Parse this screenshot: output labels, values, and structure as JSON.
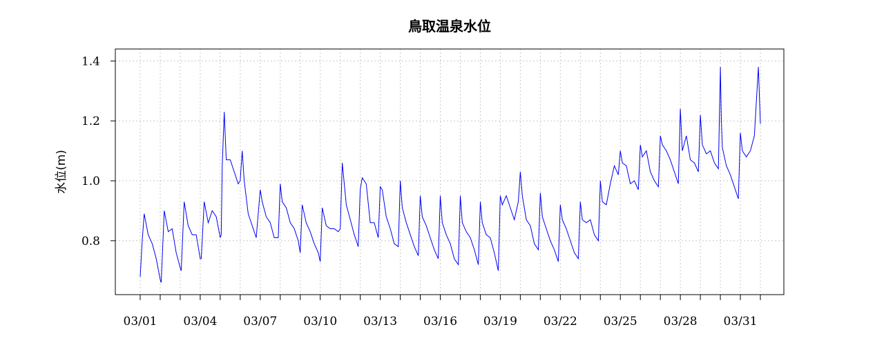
{
  "chart_data": {
    "type": "line",
    "title": "鳥取温泉水位",
    "ylabel": "水位(m)",
    "xlabel": "",
    "x_tick_labels": [
      "03/01",
      "03/04",
      "03/07",
      "03/10",
      "03/13",
      "03/16",
      "03/19",
      "03/22",
      "03/25",
      "03/28",
      "03/31"
    ],
    "x_tick_days": [
      1,
      4,
      7,
      10,
      13,
      16,
      19,
      22,
      25,
      28,
      31
    ],
    "xlim": [
      1,
      32
    ],
    "y_ticks": [
      0.8,
      1.0,
      1.2,
      1.4
    ],
    "y_tick_labels": [
      "0.8",
      "1.0",
      "1.2",
      "1.4"
    ],
    "ylim": [
      0.62,
      1.44
    ],
    "grid": true,
    "line_color": "#0000ee",
    "series": [
      {
        "x": [
          1.0,
          1.1,
          1.2,
          1.4,
          1.6,
          1.8,
          2.0,
          2.05,
          2.2,
          2.4,
          2.6,
          2.8,
          3.0,
          3.05,
          3.2,
          3.4,
          3.6,
          3.8,
          4.0,
          4.05,
          4.2,
          4.4,
          4.6,
          4.8,
          5.0,
          5.05,
          5.1,
          5.2,
          5.3,
          5.5,
          5.7,
          5.9,
          6.0,
          6.1,
          6.2,
          6.4,
          6.6,
          6.8,
          7.0,
          7.1,
          7.3,
          7.5,
          7.7,
          7.9,
          8.0,
          8.1,
          8.3,
          8.5,
          8.7,
          8.9,
          9.0,
          9.1,
          9.3,
          9.5,
          9.7,
          9.9,
          10.0,
          10.1,
          10.3,
          10.5,
          10.7,
          10.9,
          11.0,
          11.1,
          11.3,
          11.5,
          11.7,
          11.9,
          12.0,
          12.1,
          12.3,
          12.5,
          12.7,
          12.9,
          13.0,
          13.1,
          13.3,
          13.5,
          13.7,
          13.9,
          14.0,
          14.1,
          14.3,
          14.5,
          14.7,
          14.9,
          15.0,
          15.1,
          15.3,
          15.5,
          15.7,
          15.9,
          16.0,
          16.1,
          16.3,
          16.5,
          16.7,
          16.9,
          17.0,
          17.1,
          17.3,
          17.5,
          17.7,
          17.9,
          18.0,
          18.1,
          18.3,
          18.5,
          18.7,
          18.9,
          19.0,
          19.1,
          19.3,
          19.5,
          19.7,
          19.9,
          20.0,
          20.1,
          20.3,
          20.5,
          20.7,
          20.9,
          21.0,
          21.1,
          21.3,
          21.5,
          21.7,
          21.9,
          22.0,
          22.1,
          22.3,
          22.5,
          22.7,
          22.9,
          23.0,
          23.1,
          23.3,
          23.5,
          23.7,
          23.9,
          24.0,
          24.1,
          24.3,
          24.5,
          24.7,
          24.9,
          25.0,
          25.1,
          25.3,
          25.5,
          25.7,
          25.9,
          26.0,
          26.1,
          26.3,
          26.5,
          26.7,
          26.9,
          27.0,
          27.1,
          27.3,
          27.5,
          27.7,
          27.9,
          28.0,
          28.1,
          28.3,
          28.5,
          28.7,
          28.9,
          29.0,
          29.1,
          29.3,
          29.5,
          29.7,
          29.9,
          30.0,
          30.05,
          30.1,
          30.3,
          30.5,
          30.7,
          30.9,
          31.0,
          31.1,
          31.3,
          31.5,
          31.7,
          31.9,
          32.0
        ],
        "y": [
          0.68,
          0.8,
          0.89,
          0.82,
          0.79,
          0.74,
          0.67,
          0.66,
          0.9,
          0.83,
          0.84,
          0.76,
          0.71,
          0.7,
          0.93,
          0.85,
          0.82,
          0.82,
          0.74,
          0.74,
          0.93,
          0.86,
          0.9,
          0.88,
          0.81,
          0.82,
          1.05,
          1.23,
          1.07,
          1.07,
          1.03,
          0.99,
          1.0,
          1.1,
          1.0,
          0.89,
          0.85,
          0.81,
          0.97,
          0.93,
          0.88,
          0.86,
          0.81,
          0.81,
          0.99,
          0.93,
          0.91,
          0.86,
          0.84,
          0.8,
          0.76,
          0.92,
          0.86,
          0.83,
          0.79,
          0.76,
          0.73,
          0.91,
          0.85,
          0.84,
          0.84,
          0.83,
          0.84,
          1.06,
          0.92,
          0.87,
          0.82,
          0.78,
          0.97,
          1.01,
          0.99,
          0.86,
          0.86,
          0.81,
          0.98,
          0.97,
          0.88,
          0.84,
          0.79,
          0.78,
          1.0,
          0.91,
          0.86,
          0.82,
          0.78,
          0.75,
          0.95,
          0.88,
          0.85,
          0.81,
          0.77,
          0.74,
          0.95,
          0.86,
          0.82,
          0.79,
          0.74,
          0.72,
          0.95,
          0.86,
          0.83,
          0.81,
          0.77,
          0.72,
          0.93,
          0.86,
          0.82,
          0.81,
          0.76,
          0.7,
          0.95,
          0.92,
          0.95,
          0.91,
          0.87,
          0.93,
          1.03,
          0.95,
          0.87,
          0.85,
          0.79,
          0.77,
          0.96,
          0.88,
          0.84,
          0.8,
          0.77,
          0.73,
          0.92,
          0.87,
          0.84,
          0.8,
          0.76,
          0.74,
          0.93,
          0.87,
          0.86,
          0.87,
          0.82,
          0.8,
          1.0,
          0.93,
          0.92,
          0.99,
          1.05,
          1.02,
          1.1,
          1.06,
          1.05,
          0.99,
          1.0,
          0.97,
          1.12,
          1.08,
          1.1,
          1.03,
          1.0,
          0.98,
          1.15,
          1.12,
          1.1,
          1.07,
          1.03,
          0.99,
          1.24,
          1.1,
          1.15,
          1.07,
          1.06,
          1.03,
          1.22,
          1.12,
          1.09,
          1.1,
          1.06,
          1.04,
          1.38,
          1.2,
          1.11,
          1.05,
          1.02,
          0.98,
          0.94,
          1.16,
          1.1,
          1.08,
          1.1,
          1.15,
          1.38,
          1.19
        ]
      }
    ]
  }
}
